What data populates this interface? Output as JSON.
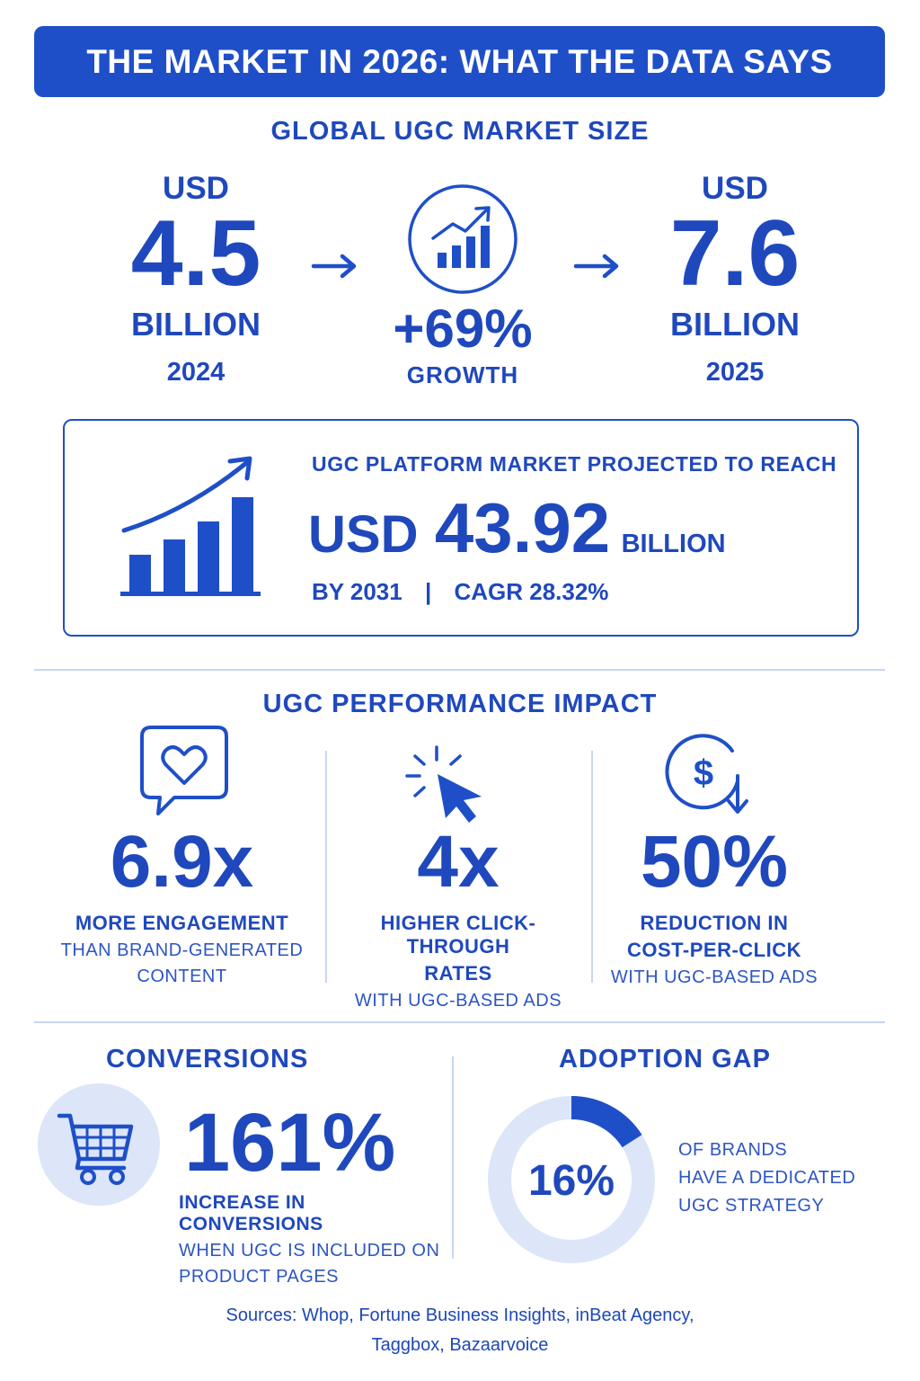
{
  "header": {
    "title": "THE MARKET IN 2026: WHAT THE DATA SAYS"
  },
  "market_size": {
    "title": "GLOBAL UGC MARKET SIZE",
    "left": {
      "currency": "USD",
      "value": "4.5",
      "unit": "BILLION",
      "year": "2024"
    },
    "middle": {
      "value": "+69%",
      "label": "GROWTH"
    },
    "right": {
      "currency": "USD",
      "value": "7.6",
      "unit": "BILLION",
      "year": "2025"
    }
  },
  "projection": {
    "heading": "UGC PLATFORM MARKET PROJECTED TO REACH",
    "currency": "USD",
    "value": "43.92",
    "unit": "BILLION",
    "year": "BY 2031",
    "separator": "|",
    "cagr": "CAGR 28.32%"
  },
  "performance": {
    "title": "UGC PERFORMANCE IMPACT",
    "items": [
      {
        "icon": "heart-chat-icon",
        "value": "6.9x",
        "label": "MORE ENGAGEMENT",
        "sub1": "THAN BRAND-GENERATED",
        "sub2": "CONTENT"
      },
      {
        "icon": "cursor-click-icon",
        "value": "4x",
        "label1": "HIGHER CLICK-THROUGH",
        "label2": "RATES",
        "sub1": "WITH UGC-BASED ADS"
      },
      {
        "icon": "dollar-down-icon",
        "value": "50%",
        "label1": "REDUCTION IN",
        "label2": "COST-PER-CLICK",
        "sub1": "WITH UGC-BASED ADS"
      }
    ]
  },
  "conversions": {
    "title": "CONVERSIONS",
    "value": "161%",
    "label": "INCREASE IN CONVERSIONS",
    "sub1": "WHEN UGC IS INCLUDED ON",
    "sub2": "PRODUCT PAGES"
  },
  "adoption": {
    "title": "ADOPTION GAP",
    "value": "16%",
    "fraction": 0.16,
    "line1": "OF BRANDS",
    "line2": "HAVE A DEDICATED",
    "line3": "UGC STRATEGY"
  },
  "sources": {
    "line1": "Sources: Whop, Fortune Business Insights, inBeat Agency,",
    "line2": "Taggbox, Bazaarvoice"
  },
  "colors": {
    "primary": "#1f4fc8",
    "light": "#dce6f8",
    "divider": "#c8d6f2"
  }
}
